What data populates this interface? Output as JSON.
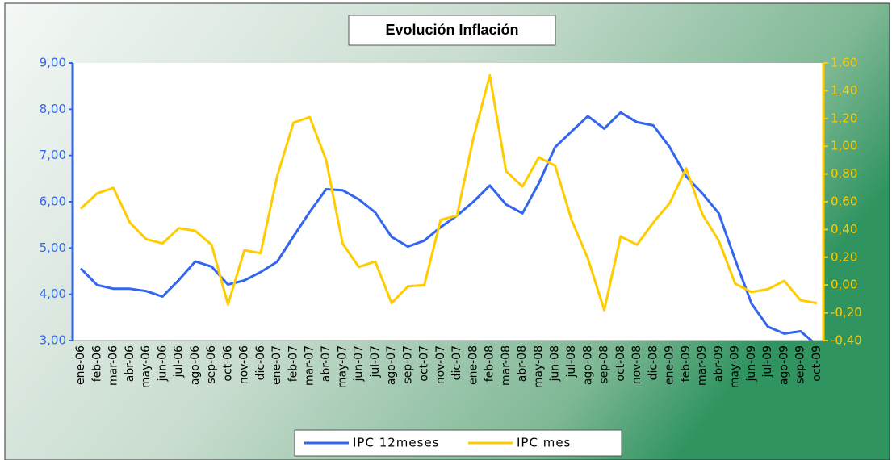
{
  "chart_data": {
    "type": "line",
    "title": "Evolución Inflación",
    "categories": [
      "ene-06",
      "feb-06",
      "mar-06",
      "abr-06",
      "may-06",
      "jun-06",
      "jul-06",
      "ago-06",
      "sep-06",
      "oct-06",
      "nov-06",
      "dic-06",
      "ene-07",
      "feb-07",
      "mar-07",
      "abr-07",
      "may-07",
      "jun-07",
      "jul-07",
      "ago-07",
      "sep-07",
      "oct-07",
      "nov-07",
      "dic-07",
      "ene-08",
      "feb-08",
      "mar-08",
      "abr-08",
      "may-08",
      "jun-08",
      "jul-08",
      "ago-08",
      "sep-08",
      "oct-08",
      "nov-08",
      "dic-08",
      "ene-09",
      "feb-09",
      "mar-09",
      "abr-09",
      "may-09",
      "jun-09",
      "jul-09",
      "ago-09",
      "sep-09",
      "oct-09"
    ],
    "series": [
      {
        "name": "IPC 12meses",
        "color": "#3366ee",
        "axis": "y",
        "values": [
          4.56,
          4.2,
          4.12,
          4.12,
          4.07,
          3.95,
          4.31,
          4.71,
          4.6,
          4.21,
          4.3,
          4.48,
          4.7,
          5.25,
          5.78,
          6.27,
          6.25,
          6.05,
          5.77,
          5.24,
          5.03,
          5.16,
          5.45,
          5.7,
          6.0,
          6.35,
          5.94,
          5.75,
          6.4,
          7.18,
          7.52,
          7.85,
          7.58,
          7.93,
          7.72,
          7.65,
          7.18,
          6.55,
          6.18,
          5.75,
          4.75,
          3.8,
          3.3,
          3.15,
          3.2,
          2.9
        ]
      },
      {
        "name": "IPC mes",
        "color": "#ffcc00",
        "axis": "y2",
        "values": [
          0.55,
          0.66,
          0.7,
          0.45,
          0.33,
          0.3,
          0.41,
          0.39,
          0.29,
          -0.14,
          0.25,
          0.23,
          0.78,
          1.17,
          1.21,
          0.9,
          0.3,
          0.13,
          0.17,
          -0.13,
          -0.01,
          0.0,
          0.47,
          0.5,
          1.06,
          1.51,
          0.82,
          0.71,
          0.92,
          0.86,
          0.47,
          0.19,
          -0.18,
          0.35,
          0.29,
          0.45,
          0.59,
          0.84,
          0.51,
          0.32,
          0.01,
          -0.05,
          -0.03,
          0.03,
          -0.11,
          -0.13
        ]
      }
    ],
    "ylim": [
      3,
      9
    ],
    "yticks": [
      {
        "value": 3,
        "label": "3,00"
      },
      {
        "value": 4,
        "label": "4,00"
      },
      {
        "value": 5,
        "label": "5,00"
      },
      {
        "value": 6,
        "label": "6,00"
      },
      {
        "value": 7,
        "label": "7,00"
      },
      {
        "value": 8,
        "label": "8,00"
      },
      {
        "value": 9,
        "label": "9,00"
      }
    ],
    "y2lim": [
      -0.4,
      1.6
    ],
    "y2ticks": [
      {
        "value": -0.4,
        "label": "-0,40"
      },
      {
        "value": -0.2,
        "label": "-0,20"
      },
      {
        "value": 0,
        "label": "0,00"
      },
      {
        "value": 0.2,
        "label": "0,20"
      },
      {
        "value": 0.4,
        "label": "0,40"
      },
      {
        "value": 0.6,
        "label": "0,60"
      },
      {
        "value": 0.8,
        "label": "0,80"
      },
      {
        "value": 1.0,
        "label": "1,00"
      },
      {
        "value": 1.2,
        "label": "1,20"
      },
      {
        "value": 1.4,
        "label": "1,40"
      },
      {
        "value": 1.6,
        "label": "1,60"
      }
    ],
    "legend": "bottom"
  }
}
